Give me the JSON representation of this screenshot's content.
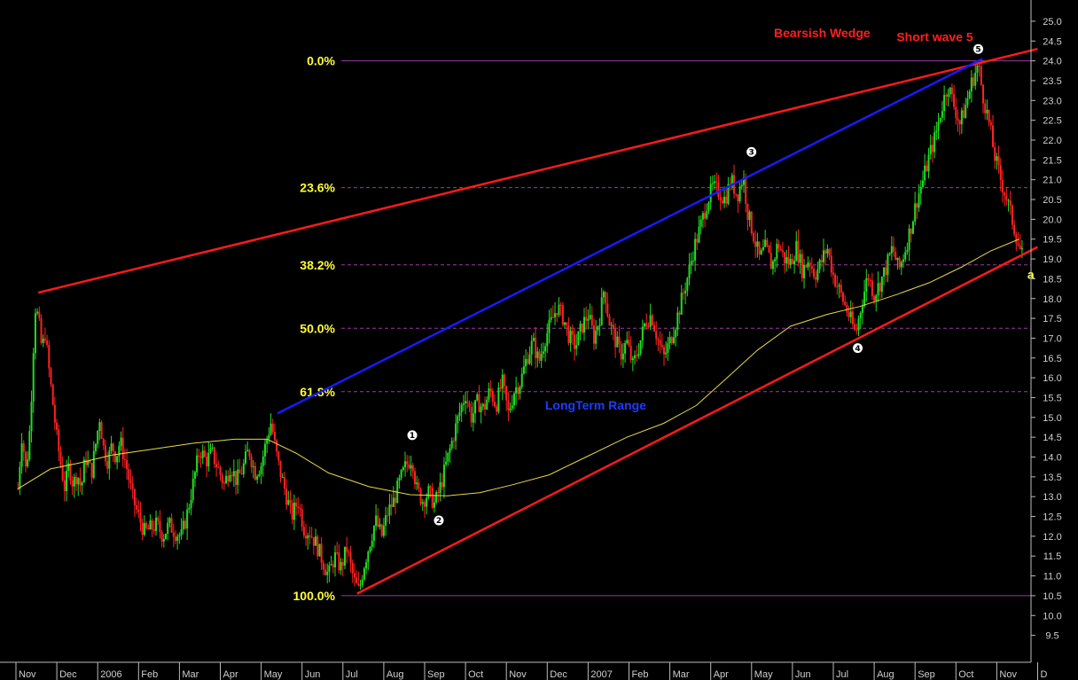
{
  "chart_data": {
    "type": "candlestick",
    "y_axis": {
      "side": "right",
      "ylim": [
        9.2,
        25.2
      ],
      "ticks": [
        9.5,
        10.0,
        10.5,
        11.0,
        11.5,
        12.0,
        12.5,
        13.0,
        13.5,
        14.0,
        14.5,
        15.0,
        15.5,
        16.0,
        16.5,
        17.0,
        17.5,
        18.0,
        18.5,
        19.0,
        19.5,
        20.0,
        20.5,
        21.0,
        21.5,
        22.0,
        22.5,
        23.0,
        23.5,
        24.0,
        24.5,
        25.0
      ]
    },
    "x_axis": {
      "tick_labels": [
        "Nov",
        "Dec",
        "2006",
        "Feb",
        "Mar",
        "Apr",
        "May",
        "Jun",
        "Jul",
        "Aug",
        "Sep",
        "Oct",
        "Nov",
        "Dec",
        "2007",
        "Feb",
        "Mar",
        "Apr",
        "May",
        "Jun",
        "Jul",
        "Aug",
        "Sep",
        "Oct",
        "Nov",
        "D"
      ],
      "month_index": [
        0,
        1,
        2,
        3,
        4,
        5,
        6,
        7,
        8,
        9,
        10,
        11,
        12,
        13,
        14,
        15,
        16,
        17,
        18,
        19,
        20,
        21,
        22,
        23,
        24,
        25
      ]
    },
    "price_path": [
      [
        -0.3,
        13.2
      ],
      [
        -0.2,
        14.6
      ],
      [
        -0.1,
        13.6
      ],
      [
        0.0,
        14.8
      ],
      [
        0.05,
        16.0
      ],
      [
        0.12,
        17.8
      ],
      [
        0.2,
        17.5
      ],
      [
        0.3,
        16.6
      ],
      [
        0.35,
        17.3
      ],
      [
        0.45,
        16.3
      ],
      [
        0.55,
        15.4
      ],
      [
        0.65,
        14.5
      ],
      [
        0.75,
        13.8
      ],
      [
        0.85,
        13.2
      ],
      [
        0.95,
        13.8
      ],
      [
        1.05,
        13.3
      ],
      [
        1.15,
        13.6
      ],
      [
        1.25,
        13.2
      ],
      [
        1.35,
        14.0
      ],
      [
        1.5,
        13.6
      ],
      [
        1.6,
        14.3
      ],
      [
        1.7,
        15.0
      ],
      [
        1.8,
        14.2
      ],
      [
        1.9,
        13.9
      ],
      [
        2.0,
        14.3
      ],
      [
        2.1,
        14.0
      ],
      [
        2.2,
        14.4
      ],
      [
        2.35,
        13.8
      ],
      [
        2.5,
        13.0
      ],
      [
        2.65,
        12.5
      ],
      [
        2.8,
        12.1
      ],
      [
        2.95,
        12.2
      ],
      [
        3.1,
        12.3
      ],
      [
        3.25,
        12.0
      ],
      [
        3.4,
        12.3
      ],
      [
        3.55,
        12.1
      ],
      [
        3.7,
        12.0
      ],
      [
        3.85,
        12.6
      ],
      [
        4.0,
        13.4
      ],
      [
        4.15,
        14.2
      ],
      [
        4.3,
        13.9
      ],
      [
        4.45,
        14.1
      ],
      [
        4.6,
        13.7
      ],
      [
        4.75,
        13.3
      ],
      [
        4.9,
        13.8
      ],
      [
        5.05,
        13.4
      ],
      [
        5.2,
        13.7
      ],
      [
        5.35,
        14.2
      ],
      [
        5.5,
        13.6
      ],
      [
        5.65,
        13.8
      ],
      [
        5.8,
        14.5
      ],
      [
        5.9,
        14.9
      ],
      [
        6.0,
        14.2
      ],
      [
        6.1,
        13.7
      ],
      [
        6.25,
        13.1
      ],
      [
        6.4,
        12.5
      ],
      [
        6.55,
        12.9
      ],
      [
        6.7,
        12.2
      ],
      [
        6.85,
        12.1
      ],
      [
        7.0,
        11.8
      ],
      [
        7.15,
        11.4
      ],
      [
        7.3,
        11.0
      ],
      [
        7.45,
        11.5
      ],
      [
        7.6,
        11.2
      ],
      [
        7.75,
        11.7
      ],
      [
        7.85,
        11.2
      ],
      [
        7.95,
        10.8
      ],
      [
        8.05,
        10.6
      ],
      [
        8.15,
        11.2
      ],
      [
        8.3,
        11.8
      ],
      [
        8.45,
        12.4
      ],
      [
        8.6,
        12.0
      ],
      [
        8.75,
        12.6
      ],
      [
        8.9,
        12.9
      ],
      [
        9.05,
        13.4
      ],
      [
        9.2,
        13.8
      ],
      [
        9.35,
        14.0
      ],
      [
        9.45,
        13.2
      ],
      [
        9.6,
        12.9
      ],
      [
        9.75,
        13.1
      ],
      [
        9.9,
        12.8
      ],
      [
        10.05,
        13.3
      ],
      [
        10.2,
        13.9
      ],
      [
        10.35,
        14.5
      ],
      [
        10.5,
        15.1
      ],
      [
        10.65,
        15.6
      ],
      [
        10.8,
        15.0
      ],
      [
        10.95,
        15.4
      ],
      [
        11.1,
        15.2
      ],
      [
        11.25,
        15.7
      ],
      [
        11.4,
        15.3
      ],
      [
        11.55,
        15.9
      ],
      [
        11.7,
        15.1
      ],
      [
        11.85,
        15.7
      ],
      [
        12.0,
        15.9
      ],
      [
        12.15,
        16.5
      ],
      [
        12.3,
        16.9
      ],
      [
        12.45,
        16.4
      ],
      [
        12.6,
        17.0
      ],
      [
        12.75,
        17.4
      ],
      [
        12.9,
        17.8
      ],
      [
        13.05,
        17.5
      ],
      [
        13.2,
        17.0
      ],
      [
        13.35,
        16.8
      ],
      [
        13.5,
        17.3
      ],
      [
        13.65,
        17.6
      ],
      [
        13.8,
        17.0
      ],
      [
        13.95,
        17.6
      ],
      [
        14.05,
        18.3
      ],
      [
        14.15,
        17.5
      ],
      [
        14.3,
        17.0
      ],
      [
        14.45,
        16.6
      ],
      [
        14.6,
        16.9
      ],
      [
        14.75,
        16.3
      ],
      [
        14.9,
        16.8
      ],
      [
        15.05,
        17.4
      ],
      [
        15.2,
        17.6
      ],
      [
        15.35,
        17.0
      ],
      [
        15.5,
        16.5
      ],
      [
        15.65,
        16.9
      ],
      [
        15.8,
        17.4
      ],
      [
        15.95,
        18.0
      ],
      [
        16.1,
        18.6
      ],
      [
        16.25,
        19.3
      ],
      [
        16.4,
        19.8
      ],
      [
        16.55,
        20.4
      ],
      [
        16.7,
        20.8
      ],
      [
        16.85,
        20.7
      ],
      [
        17.0,
        20.5
      ],
      [
        17.15,
        21.0
      ],
      [
        17.3,
        20.6
      ],
      [
        17.45,
        21.1
      ],
      [
        17.55,
        20.2
      ],
      [
        17.7,
        19.6
      ],
      [
        17.85,
        19.0
      ],
      [
        18.0,
        19.3
      ],
      [
        18.15,
        18.8
      ],
      [
        18.3,
        19.4
      ],
      [
        18.45,
        19.0
      ],
      [
        18.6,
        18.9
      ],
      [
        18.75,
        19.3
      ],
      [
        18.9,
        18.7
      ],
      [
        19.05,
        19.0
      ],
      [
        19.2,
        18.6
      ],
      [
        19.35,
        18.9
      ],
      [
        19.5,
        19.3
      ],
      [
        19.65,
        18.6
      ],
      [
        19.8,
        18.2
      ],
      [
        19.95,
        17.8
      ],
      [
        20.1,
        17.4
      ],
      [
        20.2,
        17.1
      ],
      [
        20.35,
        17.9
      ],
      [
        20.5,
        18.6
      ],
      [
        20.65,
        18.1
      ],
      [
        20.8,
        18.4
      ],
      [
        20.95,
        18.8
      ],
      [
        21.1,
        19.3
      ],
      [
        21.25,
        18.7
      ],
      [
        21.4,
        19.2
      ],
      [
        21.55,
        19.8
      ],
      [
        21.7,
        20.5
      ],
      [
        21.85,
        21.0
      ],
      [
        22.0,
        21.6
      ],
      [
        22.15,
        22.1
      ],
      [
        22.3,
        22.8
      ],
      [
        22.45,
        23.4
      ],
      [
        22.6,
        22.9
      ],
      [
        22.75,
        22.4
      ],
      [
        22.9,
        22.9
      ],
      [
        23.05,
        23.5
      ],
      [
        23.2,
        23.9
      ],
      [
        23.3,
        23.2
      ],
      [
        23.45,
        22.5
      ],
      [
        23.6,
        21.6
      ],
      [
        23.75,
        21.0
      ],
      [
        23.9,
        20.5
      ],
      [
        24.05,
        19.9
      ],
      [
        24.2,
        19.3
      ],
      [
        24.3,
        19.0
      ]
    ],
    "moving_average": [
      [
        -0.3,
        13.2
      ],
      [
        0.5,
        13.7
      ],
      [
        1.2,
        13.85
      ],
      [
        2.0,
        14.05
      ],
      [
        3.0,
        14.2
      ],
      [
        4.0,
        14.35
      ],
      [
        5.0,
        14.45
      ],
      [
        5.8,
        14.45
      ],
      [
        6.5,
        14.1
      ],
      [
        7.3,
        13.6
      ],
      [
        8.3,
        13.25
      ],
      [
        9.3,
        13.05
      ],
      [
        10.2,
        13.02
      ],
      [
        11.0,
        13.1
      ],
      [
        11.8,
        13.3
      ],
      [
        12.7,
        13.55
      ],
      [
        13.6,
        14.0
      ],
      [
        14.6,
        14.5
      ],
      [
        15.5,
        14.85
      ],
      [
        16.3,
        15.3
      ],
      [
        17.0,
        15.95
      ],
      [
        17.8,
        16.7
      ],
      [
        18.6,
        17.3
      ],
      [
        19.5,
        17.6
      ],
      [
        20.3,
        17.8
      ],
      [
        21.2,
        18.1
      ],
      [
        22.0,
        18.4
      ],
      [
        22.8,
        18.8
      ],
      [
        23.5,
        19.2
      ],
      [
        24.2,
        19.5
      ]
    ],
    "fibonacci_levels": [
      {
        "label": "0.0%",
        "price": 24.0
      },
      {
        "label": "23.6%",
        "price": 20.8
      },
      {
        "label": "38.2%",
        "price": 18.85
      },
      {
        "label": "50.0%",
        "price": 17.25
      },
      {
        "label": "61.8%",
        "price": 15.65
      },
      {
        "label": "100.0%",
        "price": 10.5
      }
    ],
    "trendlines": [
      {
        "name": "upper-wedge",
        "color": "#ff1a1a",
        "from": [
          0.2,
          18.15
        ],
        "to": [
          24.65,
          24.3
        ]
      },
      {
        "name": "lower-wedge",
        "color": "#ff1a1a",
        "from": [
          8.0,
          10.55
        ],
        "to": [
          24.65,
          19.3
        ]
      },
      {
        "name": "long-term-range",
        "color": "#1a1aff",
        "from": [
          6.05,
          15.1
        ],
        "to": [
          23.3,
          24.05
        ]
      }
    ],
    "wave_labels": [
      {
        "label": "1",
        "x": 9.35,
        "y": 14.55
      },
      {
        "label": "2",
        "x": 10.0,
        "y": 12.4
      },
      {
        "label": "3",
        "x": 17.65,
        "y": 21.7
      },
      {
        "label": "4",
        "x": 20.25,
        "y": 16.75
      },
      {
        "label": "5",
        "x": 23.2,
        "y": 24.3
      }
    ],
    "annotations": [
      {
        "text": "Bearsish Wedge",
        "x": 18.2,
        "y": 24.6,
        "style": "red"
      },
      {
        "text": "Short wave 5",
        "x": 21.2,
        "y": 24.5,
        "style": "red"
      },
      {
        "text": "LongTerm Range",
        "x": 12.6,
        "y": 15.2,
        "style": "blue"
      },
      {
        "text": "a",
        "x": 24.4,
        "y": 18.5,
        "style": "yellow"
      }
    ]
  }
}
